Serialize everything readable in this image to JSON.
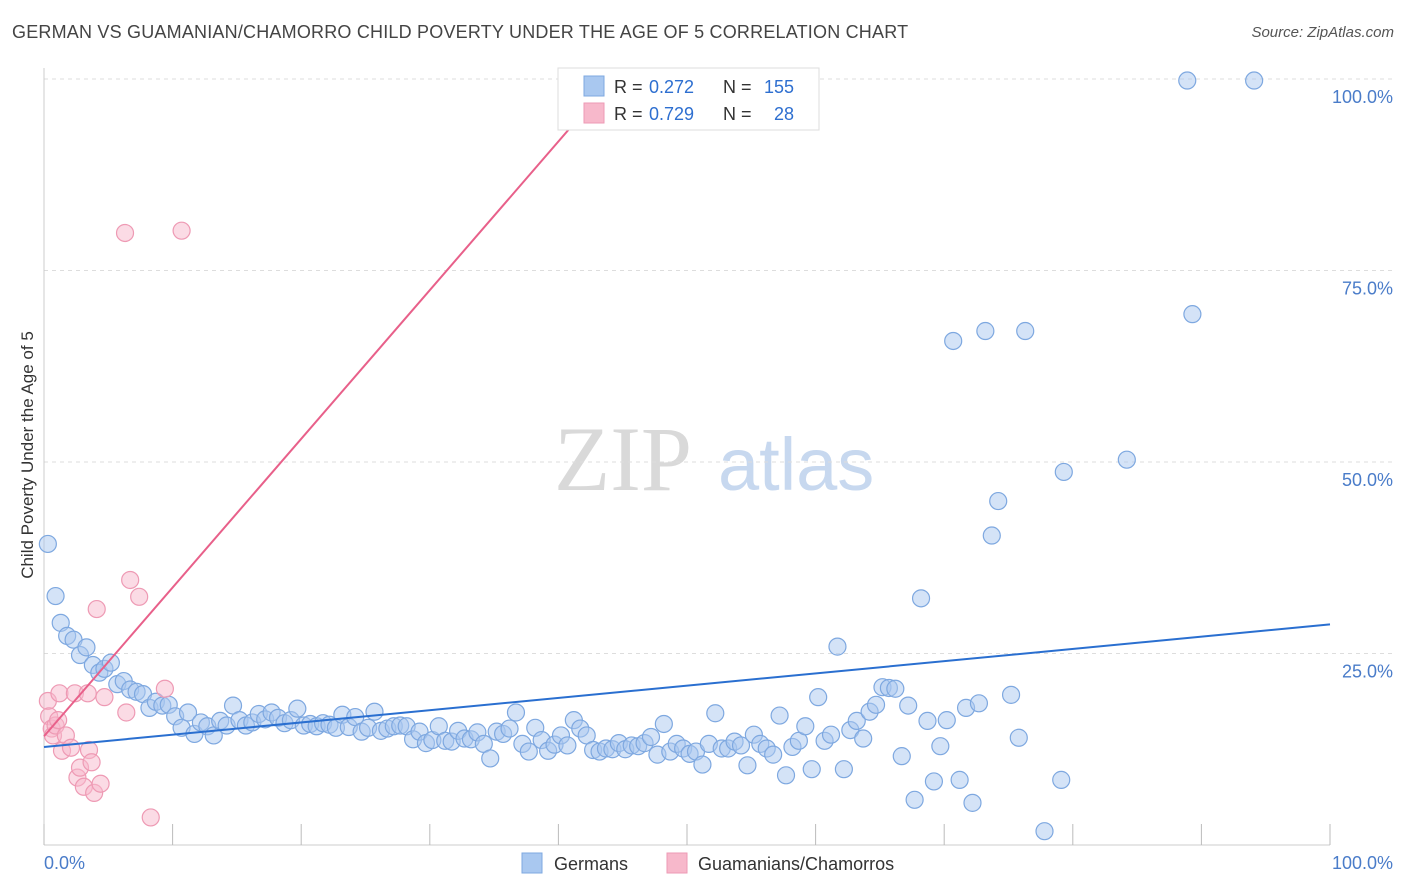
{
  "title": "GERMAN VS GUAMANIAN/CHAMORRO CHILD POVERTY UNDER THE AGE OF 5 CORRELATION CHART",
  "source": "Source: ZipAtlas.com",
  "watermark": {
    "zip": "ZIP",
    "atlas": "atlas"
  },
  "colors": {
    "german_fill": "#a9c8f0",
    "german_stroke": "#7ea8e0",
    "german_line": "#2a6fd0",
    "guam_fill": "#f7b8cb",
    "guam_stroke": "#ee9ab4",
    "guam_line": "#e8608a",
    "axis_text": "#4a7cc9",
    "grid": "#dddddd"
  },
  "legend": {
    "r_label": "R =",
    "n_label": "N =",
    "rows": [
      {
        "series": "Germans",
        "r": "0.272",
        "n": "155"
      },
      {
        "series": "Guamanians/Chamorros",
        "r": "0.729",
        "n": "28"
      }
    ]
  },
  "bottom_legend": [
    "Germans",
    "Guamanians/Chamorros"
  ],
  "chart_data": {
    "type": "scatter",
    "title": "GERMAN VS GUAMANIAN/CHAMORRO CHILD POVERTY UNDER THE AGE OF 5 CORRELATION CHART",
    "xlabel": "",
    "ylabel": "Child Poverty Under the Age of 5",
    "xlim": [
      0,
      100
    ],
    "ylim": [
      0,
      100
    ],
    "x_tick_labels": [
      "0.0%",
      "100.0%"
    ],
    "y_ticks": [
      25,
      50,
      75,
      100
    ],
    "y_tick_labels": [
      "25.0%",
      "50.0%",
      "75.0%",
      "100.0%"
    ],
    "grid": true,
    "series": [
      {
        "name": "Germans",
        "r": 0.272,
        "n": 155,
        "trend": {
          "x": [
            0,
            100
          ],
          "y": [
            12.8,
            28.8
          ]
        },
        "points": [
          [
            0.3,
            39.3
          ],
          [
            0.9,
            32.5
          ],
          [
            1.3,
            29.0
          ],
          [
            1.8,
            27.3
          ],
          [
            2.3,
            26.8
          ],
          [
            2.8,
            24.8
          ],
          [
            3.3,
            25.8
          ],
          [
            3.8,
            23.5
          ],
          [
            4.3,
            22.5
          ],
          [
            4.7,
            23.0
          ],
          [
            5.2,
            23.8
          ],
          [
            5.7,
            21.0
          ],
          [
            6.2,
            21.4
          ],
          [
            6.7,
            20.3
          ],
          [
            7.2,
            20.0
          ],
          [
            7.7,
            19.7
          ],
          [
            8.2,
            17.9
          ],
          [
            8.7,
            18.7
          ],
          [
            9.2,
            18.2
          ],
          [
            9.7,
            18.3
          ],
          [
            10.2,
            16.8
          ],
          [
            10.7,
            15.3
          ],
          [
            11.2,
            17.3
          ],
          [
            11.7,
            14.5
          ],
          [
            12.2,
            16.0
          ],
          [
            12.7,
            15.5
          ],
          [
            13.2,
            14.3
          ],
          [
            13.7,
            16.2
          ],
          [
            14.2,
            15.6
          ],
          [
            14.7,
            18.2
          ],
          [
            15.2,
            16.3
          ],
          [
            15.7,
            15.6
          ],
          [
            16.2,
            16.0
          ],
          [
            16.7,
            17.1
          ],
          [
            17.2,
            16.4
          ],
          [
            17.7,
            17.3
          ],
          [
            18.2,
            16.6
          ],
          [
            18.7,
            15.9
          ],
          [
            19.2,
            16.3
          ],
          [
            19.7,
            17.8
          ],
          [
            20.2,
            15.6
          ],
          [
            20.7,
            15.8
          ],
          [
            21.2,
            15.5
          ],
          [
            21.7,
            15.9
          ],
          [
            22.2,
            15.7
          ],
          [
            22.7,
            15.3
          ],
          [
            23.2,
            17.0
          ],
          [
            23.7,
            15.4
          ],
          [
            24.2,
            16.7
          ],
          [
            24.7,
            14.8
          ],
          [
            25.2,
            15.3
          ],
          [
            25.7,
            17.4
          ],
          [
            26.2,
            14.9
          ],
          [
            26.7,
            15.2
          ],
          [
            27.2,
            15.5
          ],
          [
            27.7,
            15.6
          ],
          [
            28.2,
            15.5
          ],
          [
            28.7,
            13.8
          ],
          [
            29.2,
            14.8
          ],
          [
            29.7,
            13.3
          ],
          [
            30.2,
            13.7
          ],
          [
            30.7,
            15.5
          ],
          [
            31.2,
            13.6
          ],
          [
            31.7,
            13.5
          ],
          [
            32.2,
            14.9
          ],
          [
            32.7,
            13.9
          ],
          [
            33.2,
            13.8
          ],
          [
            33.7,
            14.7
          ],
          [
            34.2,
            13.2
          ],
          [
            34.7,
            11.3
          ],
          [
            35.2,
            14.8
          ],
          [
            35.7,
            14.5
          ],
          [
            36.2,
            15.2
          ],
          [
            36.7,
            17.3
          ],
          [
            37.2,
            13.2
          ],
          [
            37.7,
            12.2
          ],
          [
            38.2,
            15.3
          ],
          [
            38.7,
            13.7
          ],
          [
            39.2,
            12.3
          ],
          [
            39.7,
            13.1
          ],
          [
            40.2,
            14.3
          ],
          [
            40.7,
            13.0
          ],
          [
            41.2,
            16.3
          ],
          [
            41.7,
            15.2
          ],
          [
            42.2,
            14.3
          ],
          [
            42.7,
            12.4
          ],
          [
            43.2,
            12.2
          ],
          [
            43.7,
            12.6
          ],
          [
            44.2,
            12.5
          ],
          [
            44.7,
            13.3
          ],
          [
            45.2,
            12.5
          ],
          [
            45.7,
            13.0
          ],
          [
            46.2,
            12.9
          ],
          [
            46.7,
            13.3
          ],
          [
            47.2,
            14.1
          ],
          [
            47.7,
            11.8
          ],
          [
            48.2,
            15.8
          ],
          [
            48.7,
            12.2
          ],
          [
            49.2,
            13.2
          ],
          [
            49.7,
            12.6
          ],
          [
            50.2,
            11.9
          ],
          [
            50.7,
            12.2
          ],
          [
            51.2,
            10.5
          ],
          [
            51.7,
            13.2
          ],
          [
            52.2,
            17.2
          ],
          [
            52.7,
            12.6
          ],
          [
            53.2,
            12.6
          ],
          [
            53.7,
            13.5
          ],
          [
            54.2,
            13.0
          ],
          [
            54.7,
            10.4
          ],
          [
            55.2,
            14.4
          ],
          [
            55.7,
            13.2
          ],
          [
            56.2,
            12.6
          ],
          [
            56.7,
            11.8
          ],
          [
            57.2,
            16.9
          ],
          [
            57.7,
            9.1
          ],
          [
            58.2,
            12.8
          ],
          [
            58.7,
            13.6
          ],
          [
            59.2,
            15.5
          ],
          [
            59.7,
            9.9
          ],
          [
            60.2,
            19.3
          ],
          [
            60.7,
            13.6
          ],
          [
            61.2,
            14.4
          ],
          [
            61.7,
            25.9
          ],
          [
            62.2,
            9.9
          ],
          [
            62.7,
            15.0
          ],
          [
            63.2,
            16.2
          ],
          [
            63.7,
            13.9
          ],
          [
            64.2,
            17.4
          ],
          [
            64.7,
            18.3
          ],
          [
            65.2,
            20.6
          ],
          [
            65.7,
            20.5
          ],
          [
            66.2,
            20.4
          ],
          [
            66.7,
            11.6
          ],
          [
            67.2,
            18.2
          ],
          [
            67.7,
            5.9
          ],
          [
            68.2,
            32.2
          ],
          [
            68.7,
            16.2
          ],
          [
            69.2,
            8.3
          ],
          [
            69.7,
            12.9
          ],
          [
            70.2,
            16.3
          ],
          [
            70.7,
            65.8
          ],
          [
            71.2,
            8.5
          ],
          [
            71.7,
            17.9
          ],
          [
            72.2,
            5.5
          ],
          [
            72.7,
            18.5
          ],
          [
            73.2,
            67.1
          ],
          [
            73.7,
            40.4
          ],
          [
            74.2,
            44.9
          ],
          [
            75.2,
            19.6
          ],
          [
            75.8,
            14.0
          ],
          [
            76.3,
            67.1
          ],
          [
            77.8,
            1.8
          ],
          [
            79.1,
            8.5
          ],
          [
            79.3,
            48.7
          ],
          [
            84.2,
            50.3
          ],
          [
            88.9,
            99.8
          ],
          [
            89.3,
            69.3
          ],
          [
            94.1,
            99.8
          ]
        ]
      },
      {
        "name": "Guamanians/Chamorros",
        "r": 0.729,
        "n": 28,
        "trend": {
          "x": [
            0,
            44.2
          ],
          "y": [
            14.2,
            100.0
          ]
        },
        "points": [
          [
            0.3,
            18.8
          ],
          [
            0.4,
            16.8
          ],
          [
            0.6,
            15.2
          ],
          [
            0.7,
            14.3
          ],
          [
            0.9,
            15.6
          ],
          [
            1.1,
            16.3
          ],
          [
            1.2,
            19.8
          ],
          [
            1.4,
            12.3
          ],
          [
            1.7,
            14.3
          ],
          [
            2.1,
            12.7
          ],
          [
            2.4,
            19.8
          ],
          [
            2.6,
            8.8
          ],
          [
            2.8,
            10.1
          ],
          [
            3.1,
            7.6
          ],
          [
            3.4,
            19.8
          ],
          [
            3.5,
            12.4
          ],
          [
            3.7,
            10.8
          ],
          [
            3.9,
            6.8
          ],
          [
            4.1,
            30.8
          ],
          [
            4.4,
            8.0
          ],
          [
            4.7,
            19.3
          ],
          [
            6.3,
            79.9
          ],
          [
            6.4,
            17.3
          ],
          [
            6.7,
            34.6
          ],
          [
            7.4,
            32.4
          ],
          [
            8.3,
            3.6
          ],
          [
            9.4,
            20.4
          ],
          [
            10.7,
            80.2
          ]
        ]
      }
    ]
  }
}
